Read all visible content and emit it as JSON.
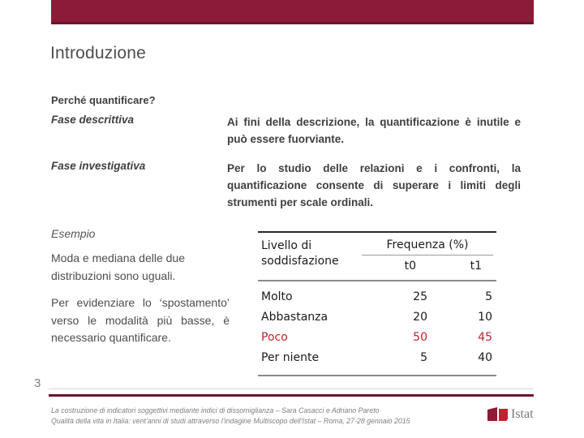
{
  "slide": {
    "title": "Introduzione",
    "page_number": "3"
  },
  "intro": {
    "question": "Perché quantificare?",
    "rows": [
      {
        "label": "Fase descrittiva",
        "text": "Ai fini della descrizione, la quantificazione è inutile e può essere fuorviante."
      },
      {
        "label": "Fase investigativa",
        "text": "Per lo studio delle relazioni e i confronti, la quantificazione consente di superare i limiti degli strumenti per scale ordinali."
      }
    ]
  },
  "example": {
    "heading": "Esempio",
    "paragraph1": "Moda e mediana delle due distribuzioni sono uguali.",
    "paragraph2": "Per evidenziare lo ‘spostamento’ verso le modalità più basse, è necessario quantificare."
  },
  "table": {
    "col_label": "Livello di soddisfazione",
    "group_label": "Frequenza (%)",
    "subcols": [
      "t0",
      "t1"
    ],
    "rows": [
      {
        "label": "Molto",
        "t0": "25",
        "t1": "5"
      },
      {
        "label": "Abbastanza",
        "t0": "20",
        "t1": "10"
      },
      {
        "label": "Poco",
        "t0": "50",
        "t1": "45"
      },
      {
        "label": "Per niente",
        "t0": "5",
        "t1": "40"
      }
    ],
    "highlight_row": "Poco",
    "highlight_color": "#C2212C"
  },
  "footer": {
    "line1": "La costruzione di indicatori soggettivi mediante indici di dissomiglianza – Sara Casacci e Adriano Pareto",
    "line2": "Qualità della vita in Italia: vent’anni di studi attraverso l’indagine Multiscopo dell’Istat – Roma, 27-28 gennaio 2015",
    "logo_text": "Istat"
  },
  "colors": {
    "top_bar": "#8B1B36",
    "top_bar_border": "#6D142A",
    "footer_line": "#6B1130",
    "table_highlight": "#C2212C"
  }
}
